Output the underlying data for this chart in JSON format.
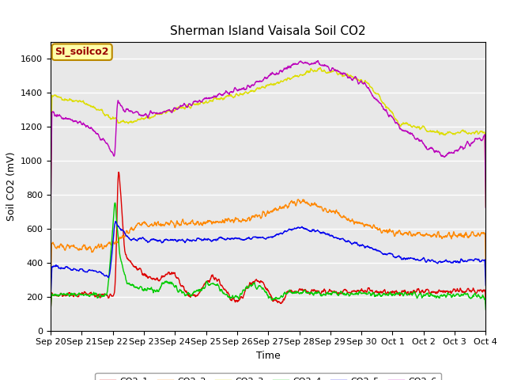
{
  "title": "Sherman Island Vaisala Soil CO2",
  "xlabel": "Time",
  "ylabel": "Soil CO2 (mV)",
  "ylim": [
    0,
    1700
  ],
  "yticks": [
    0,
    200,
    400,
    600,
    800,
    1000,
    1200,
    1400,
    1600
  ],
  "background_color": "#e8e8e8",
  "legend_label": "SI_soilco2",
  "series_colors": {
    "CO2_1": "#dd0000",
    "CO2_2": "#ff8800",
    "CO2_3": "#dddd00",
    "CO2_4": "#00cc00",
    "CO2_5": "#0000ee",
    "CO2_6": "#bb00bb"
  },
  "xtick_labels": [
    "Sep 20",
    "Sep 21",
    "Sep 22",
    "Sep 23",
    "Sep 24",
    "Sep 25",
    "Sep 26",
    "Sep 27",
    "Sep 28",
    "Sep 29",
    "Sep 30",
    "Oct 1",
    "Oct 2",
    "Oct 3",
    "Oct 4"
  ],
  "xtick_positions": [
    0,
    1,
    2,
    3,
    4,
    5,
    6,
    7,
    8,
    9,
    10,
    11,
    12,
    13,
    14
  ]
}
